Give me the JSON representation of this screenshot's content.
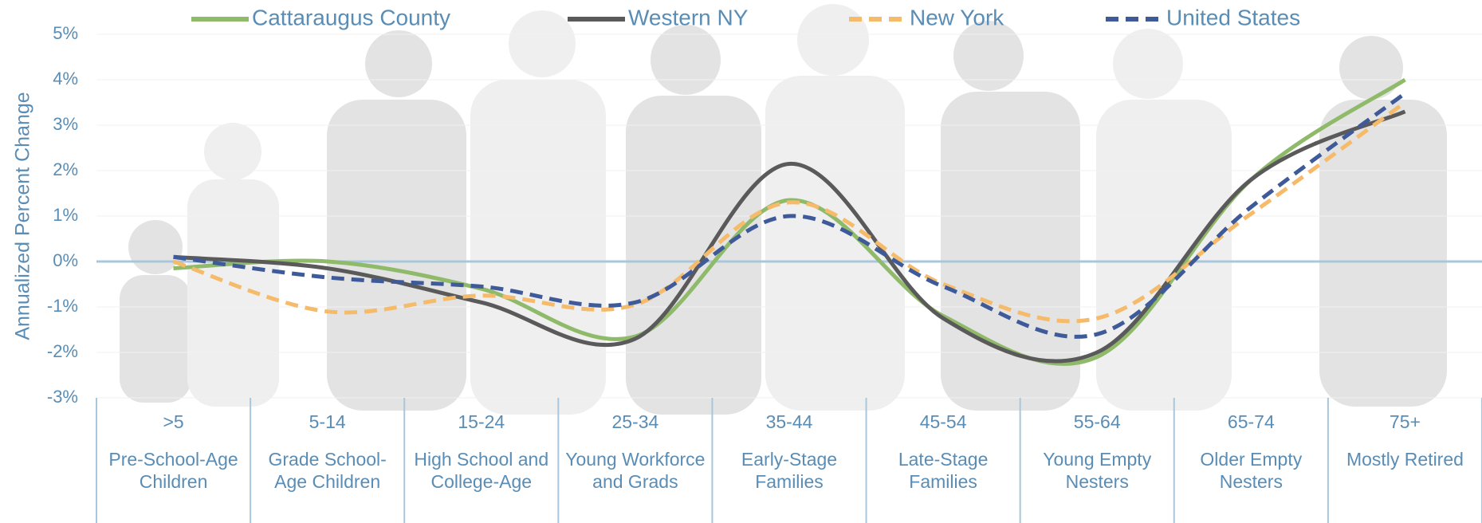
{
  "chart_data": {
    "type": "line",
    "y_label": "Annualized Percent Change",
    "categories": [
      ">5",
      "5-14",
      "15-24",
      "25-34",
      "35-44",
      "45-54",
      "55-64",
      "65-74",
      "75+"
    ],
    "category_descriptions": [
      "Pre-School-Age Children",
      "Grade School-Age Children",
      "High School and College-Age",
      "Young Workforce and Grads",
      "Early-Stage Families",
      "Late-Stage Families",
      "Young Empty Nesters",
      "Older Empty Nesters",
      "Mostly Retired"
    ],
    "series": [
      {
        "name": "Cattaraugus County",
        "color": "#8fba6a",
        "dash": false,
        "values": [
          -0.15,
          0.0,
          -0.6,
          -1.65,
          1.35,
          -1.2,
          -2.1,
          1.8,
          4.0
        ]
      },
      {
        "name": "Western NY",
        "color": "#5a5a5a",
        "dash": false,
        "values": [
          0.1,
          -0.15,
          -0.9,
          -1.7,
          2.15,
          -1.25,
          -2.0,
          1.8,
          3.3
        ]
      },
      {
        "name": "New York",
        "color": "#f5bb6a",
        "dash": true,
        "values": [
          0.0,
          -1.1,
          -0.75,
          -0.95,
          1.3,
          -0.5,
          -1.25,
          1.05,
          3.5
        ]
      },
      {
        "name": "United States",
        "color": "#3f5a99",
        "dash": true,
        "values": [
          0.1,
          -0.35,
          -0.55,
          -0.9,
          1.0,
          -0.55,
          -1.6,
          1.2,
          3.7
        ]
      }
    ],
    "ylim": [
      -3,
      5
    ],
    "yticks": [
      {
        "value": -3,
        "label": "-3%"
      },
      {
        "value": -2,
        "label": "-2%"
      },
      {
        "value": -1,
        "label": "-1%"
      },
      {
        "value": 0,
        "label": "0%"
      },
      {
        "value": 1,
        "label": "1%"
      },
      {
        "value": 2,
        "label": "2%"
      },
      {
        "value": 3,
        "label": "3%"
      },
      {
        "value": 4,
        "label": "4%"
      },
      {
        "value": 5,
        "label": "5%"
      }
    ],
    "grid": true,
    "smooth": true,
    "legend": "top"
  }
}
